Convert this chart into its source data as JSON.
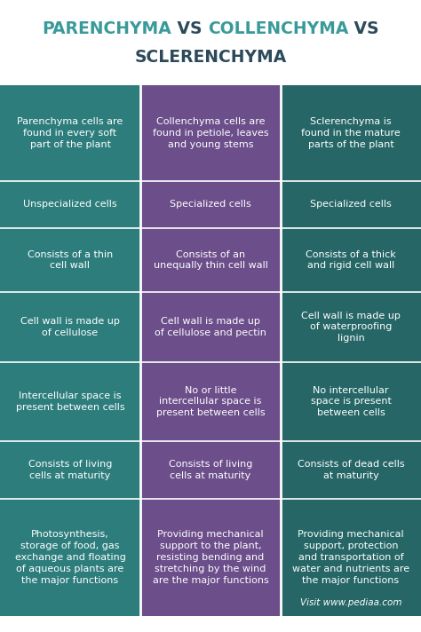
{
  "title_line1_parts": [
    [
      "PARENCHYMA",
      "#3a9a9a"
    ],
    [
      " VS ",
      "#2c4a5a"
    ],
    [
      "COLLENCHYMA",
      "#3a9a9a"
    ],
    [
      " VS",
      "#2c4a5a"
    ]
  ],
  "title_line2": "SCLERENCHYMA",
  "title_line2_color": "#2c4a5a",
  "bg_color": "#ffffff",
  "col_colors": [
    "#2e7d7d",
    "#6b4e8a",
    "#266666"
  ],
  "watermark": "Visit www.pediaa.com",
  "columns": [
    {
      "rows": [
        "Parenchyma cells are\nfound in every soft\npart of the plant",
        "Unspecialized cells",
        "Consists of a thin\ncell wall",
        "Cell wall is made up\nof cellulose",
        "Intercellular space is\npresent between cells",
        "Consists of living\ncells at maturity",
        "Photosynthesis,\nstorage of food, gas\nexchange and floating\nof aqueous plants are\nthe major functions"
      ]
    },
    {
      "rows": [
        "Collenchyma cells are\nfound in petiole, leaves\nand young stems",
        "Specialized cells",
        "Consists of an\nunequally thin cell wall",
        "Cell wall is made up\nof cellulose and pectin",
        "No or little\nintercellular space is\npresent between cells",
        "Consists of living\ncells at maturity",
        "Providing mechanical\nsupport to the plant,\nresisting bending and\nstretching by the wind\nare the major functions"
      ]
    },
    {
      "rows": [
        "Sclerenchyma is\nfound in the mature\nparts of the plant",
        "Specialized cells",
        "Consists of a thick\nand rigid cell wall",
        "Cell wall is made up\nof waterproofing\nlignin",
        "No intercellular\nspace is present\nbetween cells",
        "Consists of dead cells\nat maturity",
        "Providing mechanical\nsupport, protection\nand transportation of\nwater and nutrients are\nthe major functions"
      ]
    }
  ],
  "text_color": "#ffffff",
  "cell_font_size": 8.0,
  "title_fontsize": 13.5,
  "watermark_color": "#ffffff",
  "watermark_fontsize": 7.5,
  "row_height_weights": [
    1.5,
    0.75,
    1.0,
    1.1,
    1.25,
    0.9,
    1.85
  ]
}
